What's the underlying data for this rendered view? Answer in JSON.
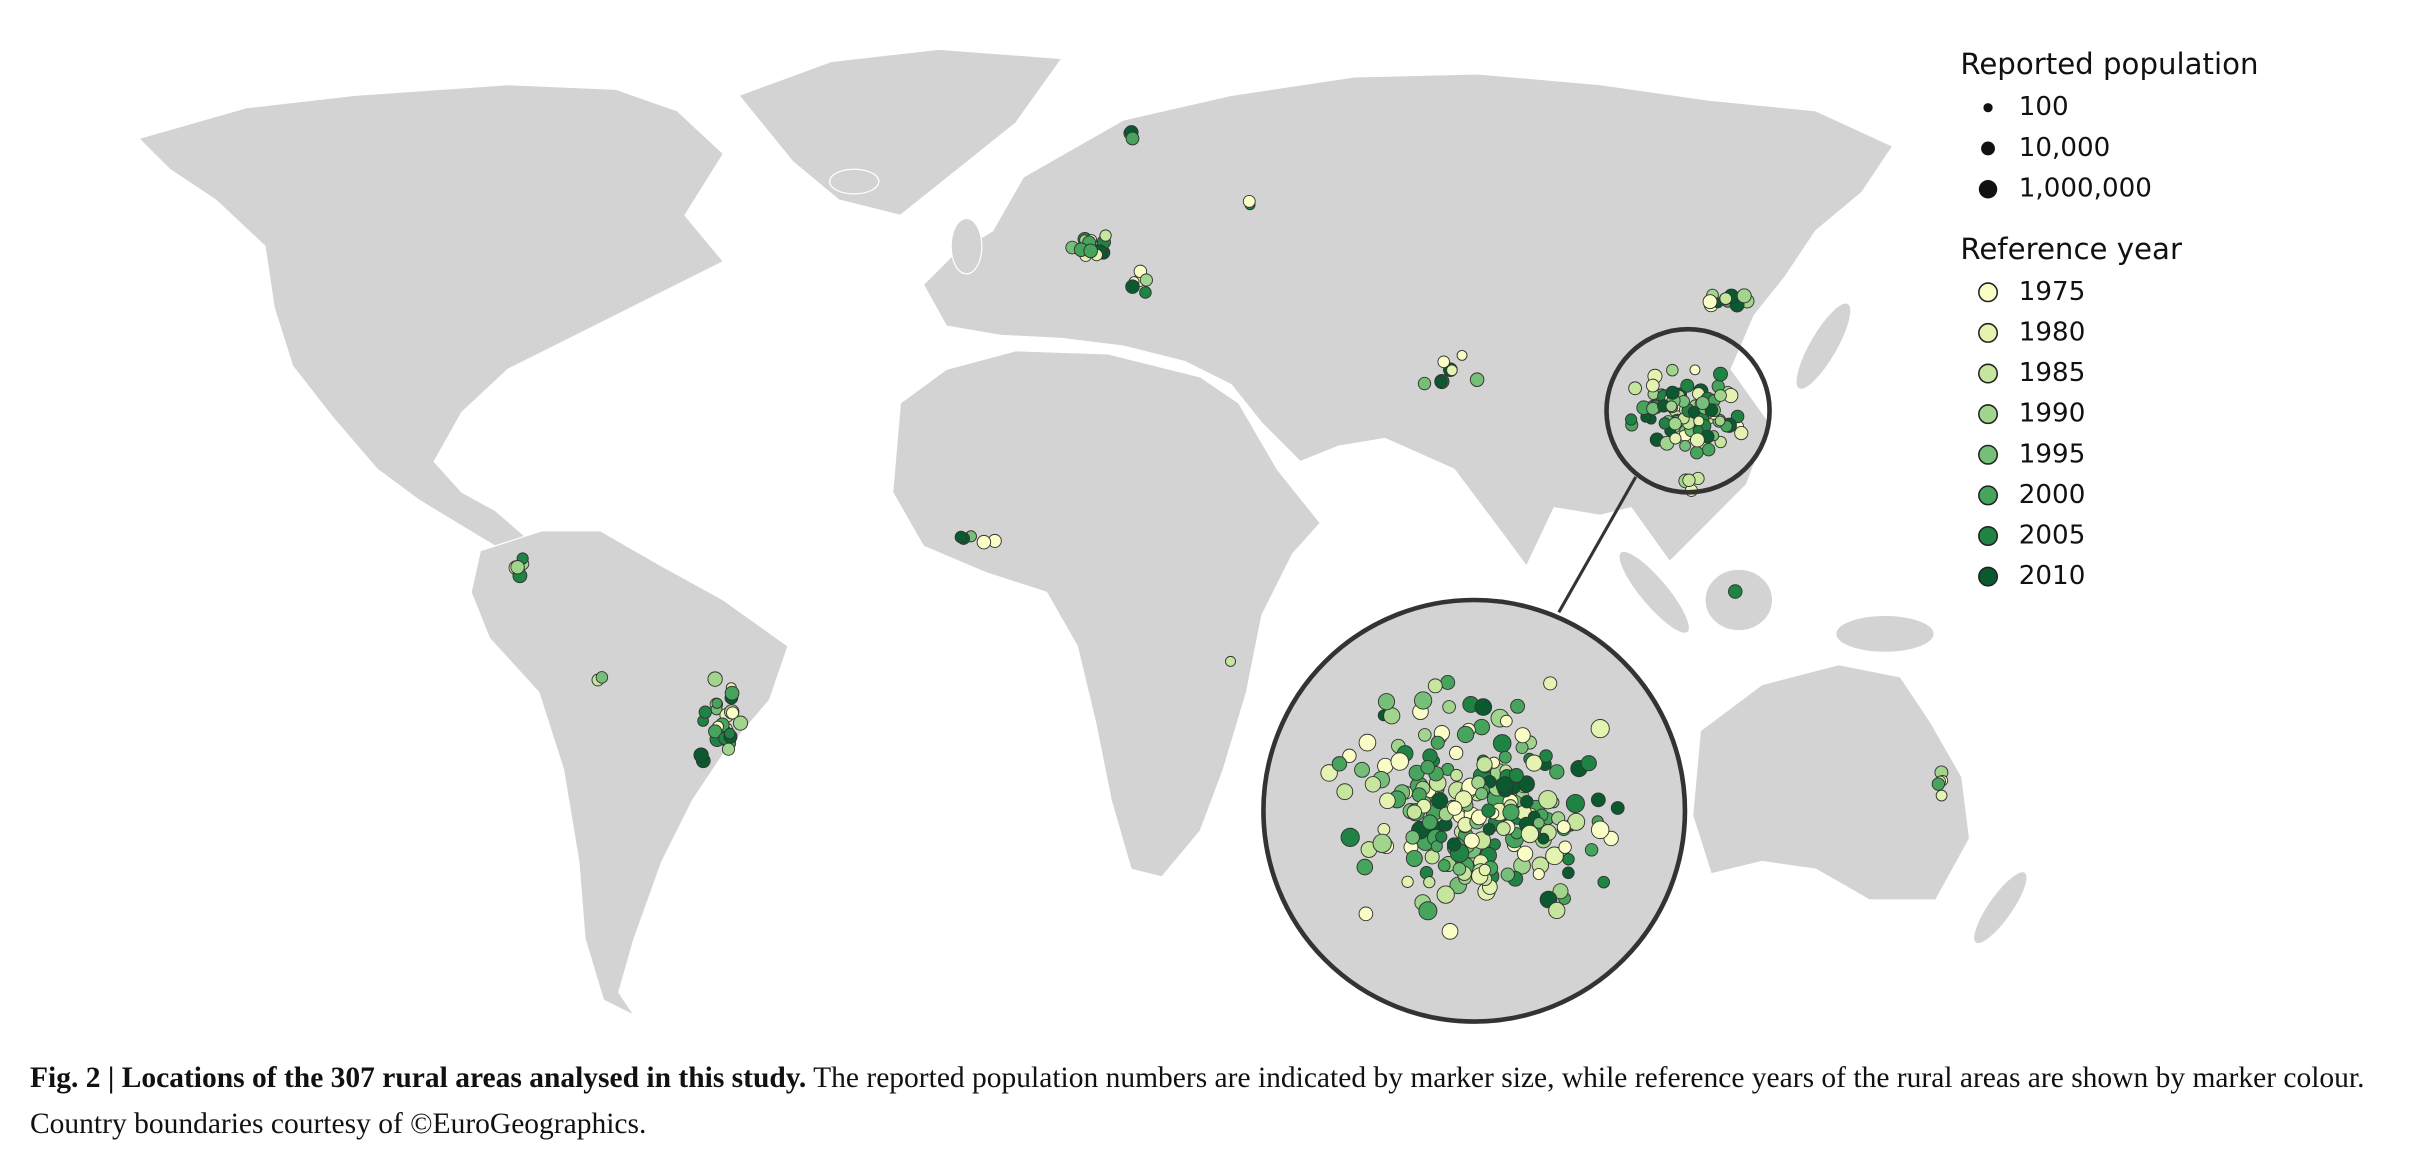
{
  "legend": {
    "size_title": "Reported population",
    "sizes": [
      100,
      {
        "value": 10000,
        "label": "10,000"
      },
      {
        "value": 1000000,
        "label": "1,000,000"
      }
    ],
    "color_title": "Reference year",
    "years": [
      1975,
      1980,
      1985,
      1990,
      1995,
      2000,
      2005,
      2010
    ],
    "colors": [
      "#fbfdc6",
      "#e4f3b0",
      "#c6e59d",
      "#a1d48c",
      "#76bf78",
      "#46a45c",
      "#1f8443",
      "#0b5a2f"
    ]
  },
  "caption": {
    "label": "Fig. 2 | Locations of the 307 rural areas analysed in this study.",
    "text": "The reported population numbers are indicated by marker size, while reference years of the rural areas are shown by marker colour. Country boundaries courtesy of ©EuroGeographics."
  }
}
